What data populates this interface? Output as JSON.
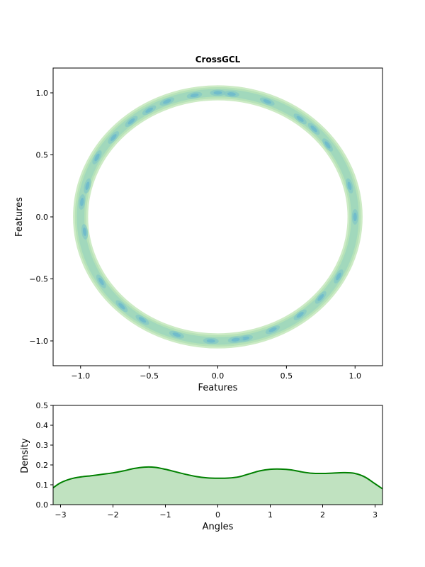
{
  "chart_data": [
    {
      "type": "contour",
      "title": "CrossGCL",
      "xlabel": "Features",
      "ylabel": "Features",
      "xlim": [
        -1.2,
        1.2
      ],
      "ylim": [
        -1.2,
        1.2
      ],
      "xticks": [
        -1.0,
        -0.5,
        0.0,
        0.5,
        1.0
      ],
      "xtick_labels": [
        "−1.0",
        "−0.5",
        "0.0",
        "0.5",
        "1.0"
      ],
      "yticks": [
        -1.0,
        -0.5,
        0.0,
        0.5,
        1.0
      ],
      "ytick_labels": [
        "−1.0",
        "−0.5",
        "0.0",
        "0.5",
        "1.0"
      ],
      "grid": false,
      "shape": "ring",
      "ring_radius": 1.0,
      "colors": [
        "#cdebc5",
        "#b6e2b8",
        "#a1d8bc",
        "#86c9c4",
        "#6cb8cc"
      ],
      "hotspots": [
        {
          "x": -0.97,
          "y": -0.12
        },
        {
          "x": -0.99,
          "y": 0.12
        },
        {
          "x": -0.95,
          "y": 0.25
        },
        {
          "x": -0.88,
          "y": 0.48
        },
        {
          "x": -0.76,
          "y": 0.64
        },
        {
          "x": -0.63,
          "y": 0.77
        },
        {
          "x": -0.5,
          "y": 0.86
        },
        {
          "x": -0.37,
          "y": 0.93
        },
        {
          "x": -0.17,
          "y": 0.98
        },
        {
          "x": 0.0,
          "y": 1.0
        },
        {
          "x": 0.1,
          "y": 0.99
        },
        {
          "x": 0.36,
          "y": 0.93
        },
        {
          "x": 0.6,
          "y": 0.79
        },
        {
          "x": 0.7,
          "y": 0.71
        },
        {
          "x": 0.8,
          "y": 0.58
        },
        {
          "x": 0.96,
          "y": 0.25
        },
        {
          "x": 1.0,
          "y": 0.0
        },
        {
          "x": 0.88,
          "y": -0.48
        },
        {
          "x": 0.75,
          "y": -0.65
        },
        {
          "x": 0.6,
          "y": -0.79
        },
        {
          "x": 0.4,
          "y": -0.91
        },
        {
          "x": 0.2,
          "y": -0.98
        },
        {
          "x": 0.13,
          "y": -0.99
        },
        {
          "x": -0.05,
          "y": -1.0
        },
        {
          "x": -0.3,
          "y": -0.95
        },
        {
          "x": -0.55,
          "y": -0.83
        },
        {
          "x": -0.7,
          "y": -0.72
        },
        {
          "x": -0.85,
          "y": -0.52
        }
      ]
    },
    {
      "type": "area",
      "xlabel": "Angles",
      "ylabel": "Density",
      "xlim": [
        -3.14159,
        3.14159
      ],
      "ylim": [
        0,
        0.5
      ],
      "xticks": [
        -3,
        -2,
        -1,
        0,
        1,
        2,
        3
      ],
      "xtick_labels": [
        "−3",
        "−2",
        "−1",
        "0",
        "1",
        "2",
        "3"
      ],
      "yticks": [
        0.0,
        0.1,
        0.2,
        0.3,
        0.4,
        0.5
      ],
      "ytick_labels": [
        "0.0",
        "0.1",
        "0.2",
        "0.3",
        "0.4",
        "0.5"
      ],
      "line_color": "#008000",
      "fill_color": "#c0e2c0",
      "x": [
        -3.14,
        -3.0,
        -2.8,
        -2.6,
        -2.4,
        -2.2,
        -2.0,
        -1.8,
        -1.6,
        -1.4,
        -1.2,
        -1.0,
        -0.8,
        -0.6,
        -0.4,
        -0.2,
        0.0,
        0.2,
        0.4,
        0.6,
        0.8,
        1.0,
        1.2,
        1.4,
        1.6,
        1.8,
        2.0,
        2.2,
        2.4,
        2.6,
        2.8,
        3.0,
        3.14
      ],
      "y": [
        0.085,
        0.11,
        0.13,
        0.14,
        0.146,
        0.153,
        0.16,
        0.17,
        0.182,
        0.189,
        0.188,
        0.178,
        0.165,
        0.152,
        0.141,
        0.135,
        0.133,
        0.134,
        0.14,
        0.155,
        0.17,
        0.178,
        0.179,
        0.175,
        0.165,
        0.158,
        0.157,
        0.159,
        0.161,
        0.158,
        0.14,
        0.105,
        0.08
      ]
    }
  ]
}
